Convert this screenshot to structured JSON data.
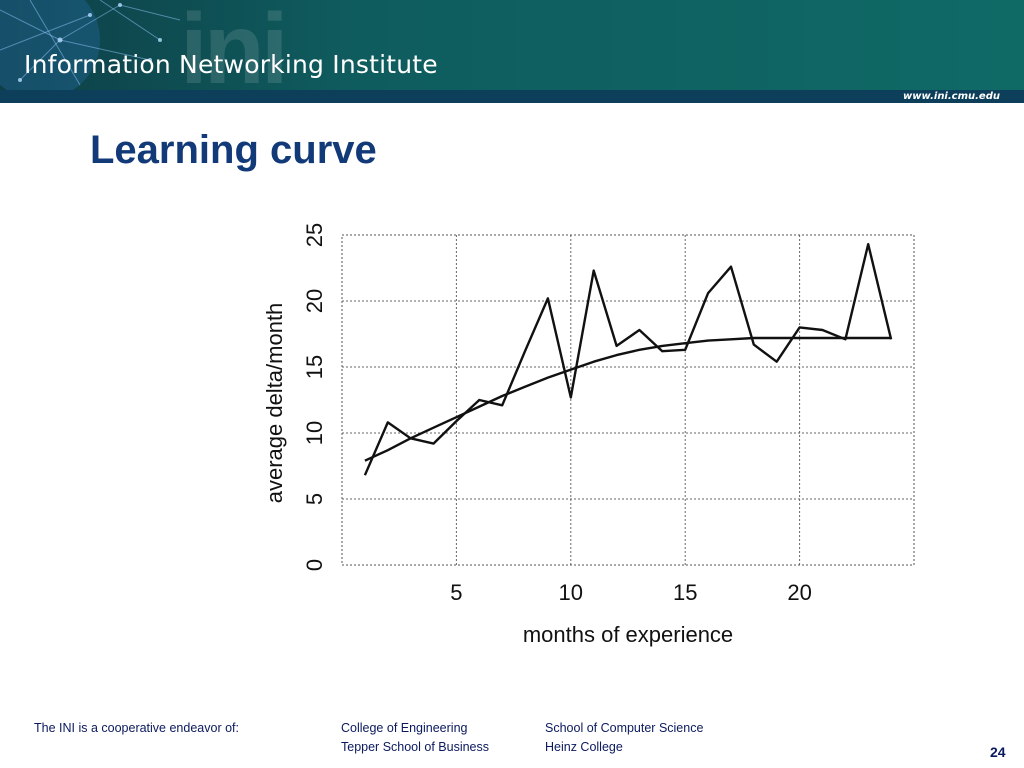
{
  "header": {
    "watermark": "ini",
    "institute_name": "Information Networking Institute",
    "url": "www.ini.cmu.edu"
  },
  "slide": {
    "title": "Learning curve",
    "page_number": "24"
  },
  "footer": {
    "intro": "The INI is a cooperative endeavor of:",
    "col1": [
      "College of Engineering",
      "Tepper School of Business"
    ],
    "col2": [
      "School of Computer Science",
      "Heinz College"
    ]
  },
  "chart_data": {
    "type": "line",
    "xlabel": "months of experience",
    "ylabel": "average delta/month",
    "xlim": [
      0,
      25
    ],
    "ylim": [
      0,
      25
    ],
    "x_ticks": [
      5,
      10,
      15,
      20
    ],
    "y_ticks": [
      0,
      5,
      10,
      15,
      20,
      25
    ],
    "grid": true,
    "series": [
      {
        "style": "jagged",
        "x": [
          1,
          2,
          3,
          4,
          5,
          6,
          7,
          8,
          9,
          10,
          11,
          12,
          13,
          14,
          15,
          16,
          17,
          18,
          19,
          20,
          21,
          22,
          23,
          24
        ],
        "values": [
          6.8,
          10.8,
          9.6,
          9.2,
          10.9,
          12.5,
          12.1,
          16.2,
          20.2,
          12.7,
          22.3,
          16.6,
          17.8,
          16.2,
          16.3,
          20.6,
          22.6,
          16.7,
          15.4,
          18.0,
          17.8,
          17.1,
          24.3,
          17.1
        ]
      },
      {
        "style": "smooth",
        "x": [
          1,
          2,
          3,
          4,
          5,
          6,
          7,
          8,
          9,
          10,
          11,
          12,
          13,
          14,
          15,
          16,
          17,
          18,
          19,
          20,
          21,
          22,
          23,
          24
        ],
        "values": [
          7.9,
          8.7,
          9.6,
          10.4,
          11.2,
          12.0,
          12.8,
          13.5,
          14.2,
          14.8,
          15.4,
          15.9,
          16.3,
          16.6,
          16.8,
          17.0,
          17.1,
          17.2,
          17.2,
          17.2,
          17.2,
          17.2,
          17.2,
          17.2
        ]
      }
    ]
  }
}
